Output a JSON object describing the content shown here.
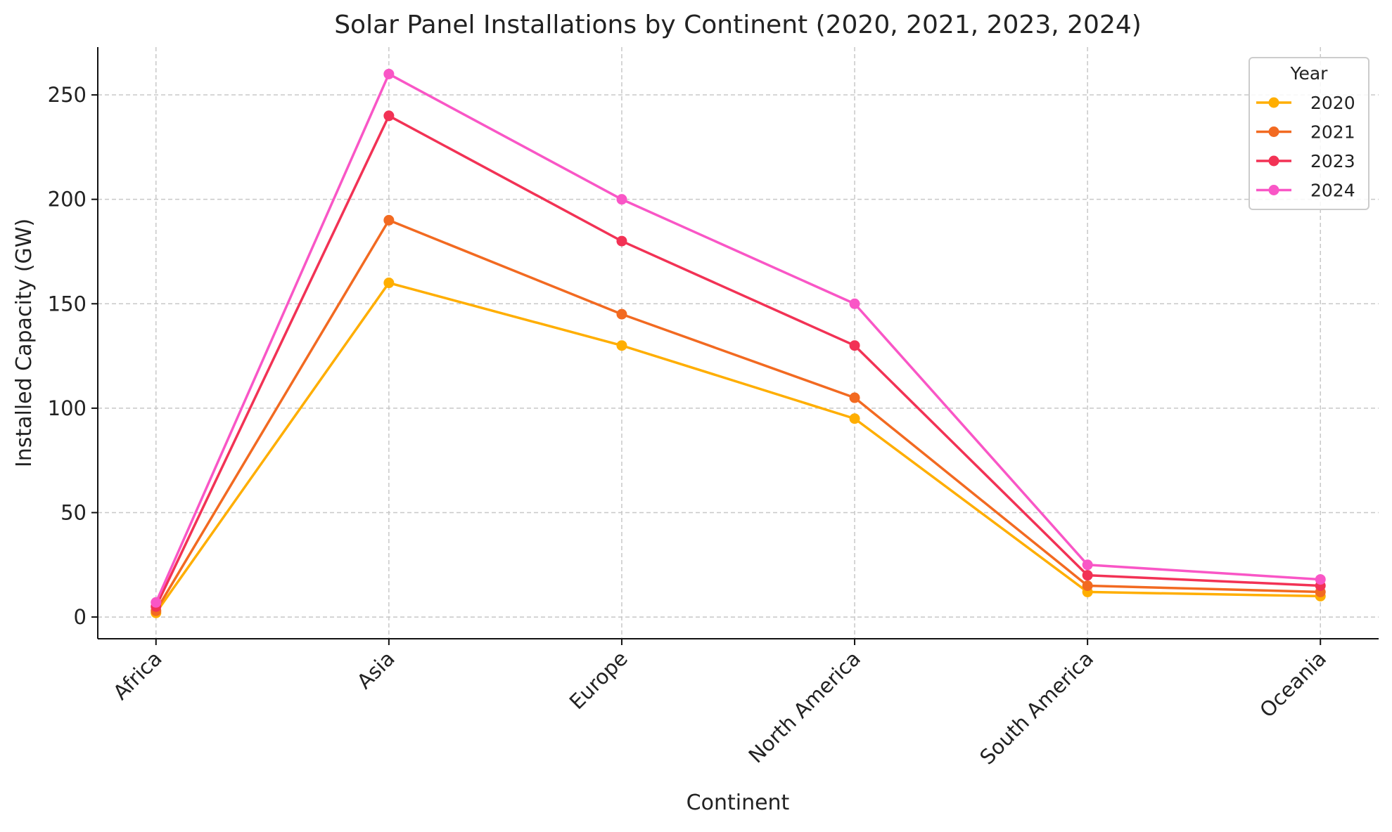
{
  "chart_data": {
    "type": "line",
    "title": "Solar Panel Installations by Continent (2020, 2021, 2023, 2024)",
    "xlabel": "Continent",
    "ylabel": "Installed Capacity (GW)",
    "categories": [
      "Africa",
      "Asia",
      "Europe",
      "North America",
      "South America",
      "Oceania"
    ],
    "ylim": [
      -10.4,
      272.9
    ],
    "yticks": [
      0,
      50,
      100,
      150,
      200,
      250
    ],
    "grid": true,
    "legend": {
      "title": "Year",
      "placement": "top-right"
    },
    "series": [
      {
        "name": "2020",
        "color": "#FFAE00",
        "values": [
          2,
          160,
          130,
          95,
          12,
          10
        ]
      },
      {
        "name": "2021",
        "color": "#F26A21",
        "values": [
          3,
          190,
          145,
          105,
          15,
          12
        ]
      },
      {
        "name": "2023",
        "color": "#F23255",
        "values": [
          5,
          240,
          180,
          130,
          20,
          15
        ]
      },
      {
        "name": "2024",
        "color": "#F956C6",
        "values": [
          7,
          260,
          200,
          150,
          25,
          18
        ]
      }
    ]
  }
}
